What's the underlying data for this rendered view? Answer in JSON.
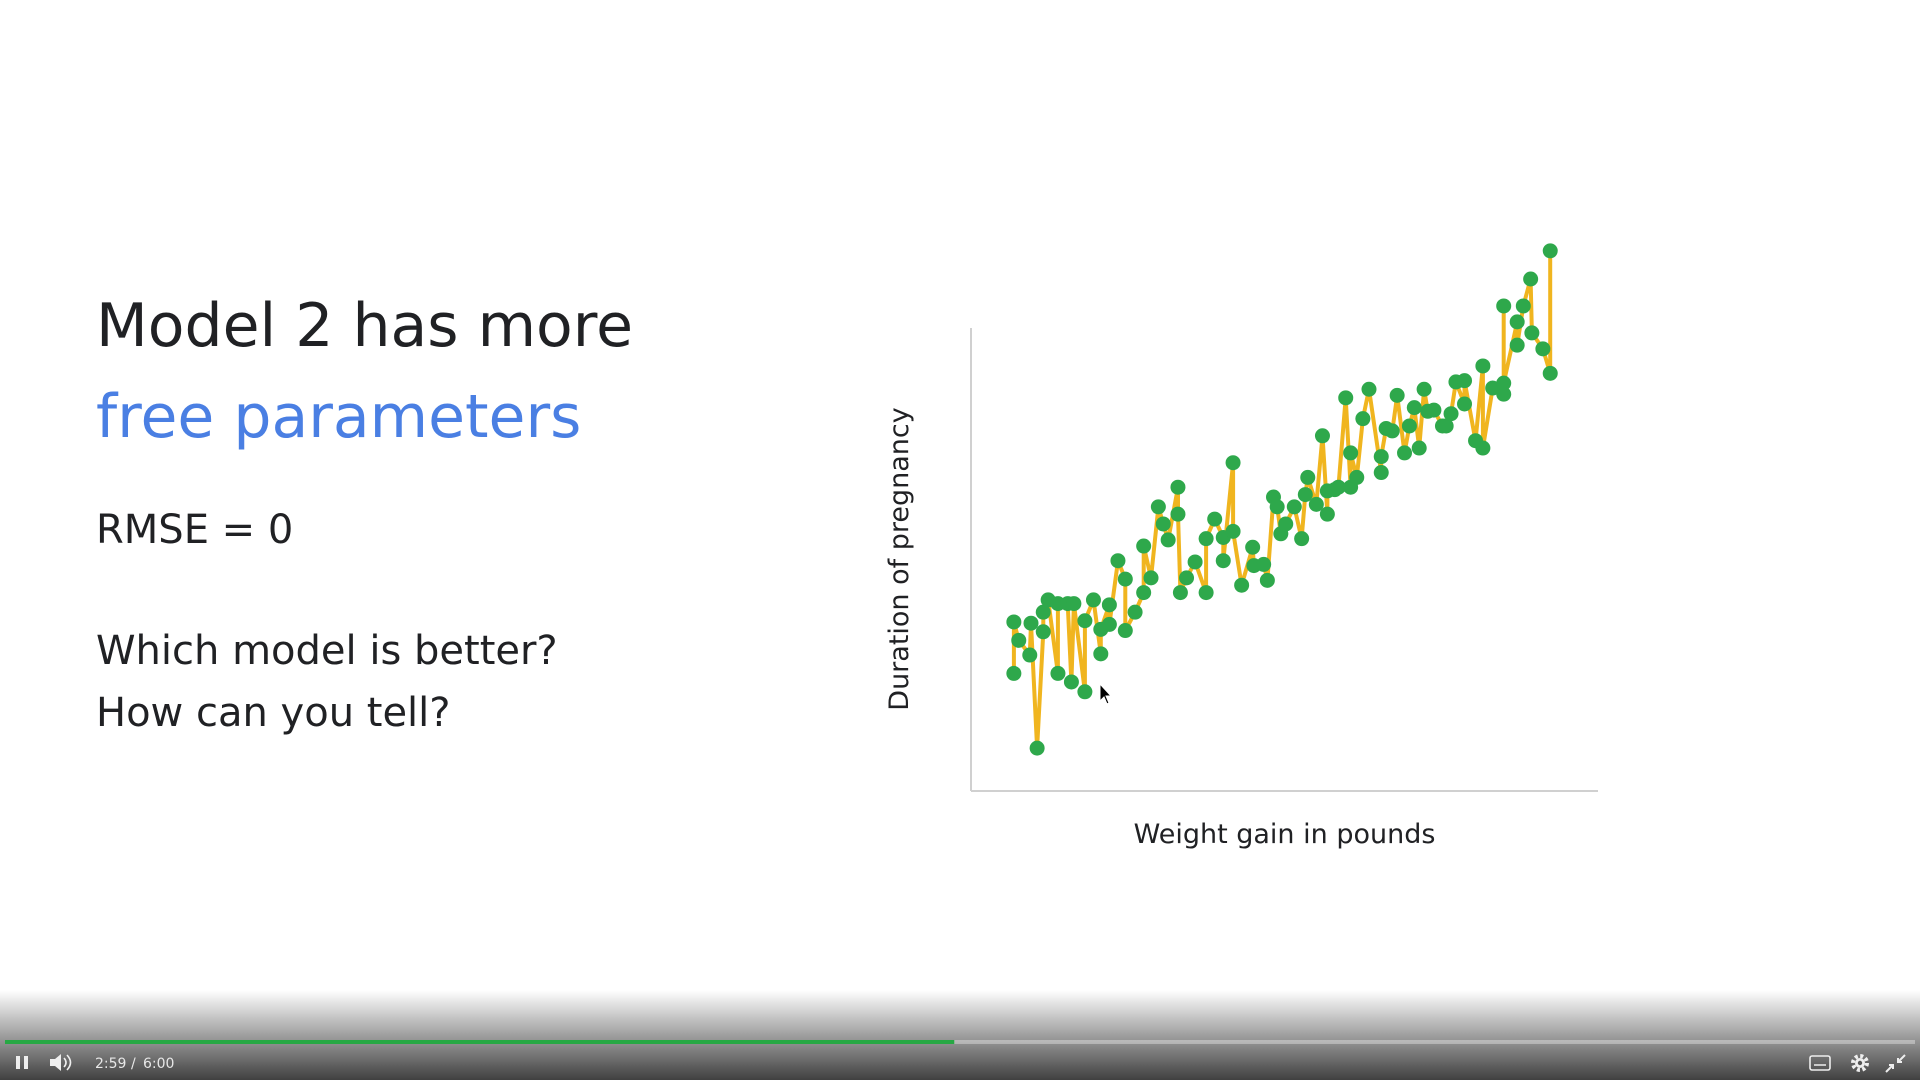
{
  "slide": {
    "title_line1": "Model 2 has more",
    "title_line2": "free parameters",
    "metric": "RMSE = 0",
    "question1": "Which model is better?",
    "question2": "How can you tell?"
  },
  "chart_data": {
    "type": "line",
    "markers": true,
    "xlabel": "Weight gain in pounds",
    "ylabel": "Duration of pregnancy",
    "xlim": [
      0,
      512
    ],
    "ylim": [
      0,
      378
    ],
    "line_color": "#f0b51f",
    "marker_color": "#2ea84b",
    "axis_color": "#d0d0d0",
    "x": [
      35,
      35,
      39,
      48,
      49,
      54,
      59,
      59,
      63,
      71,
      71,
      79,
      82,
      84,
      93,
      93,
      100,
      106,
      106,
      113,
      113,
      120,
      126,
      126,
      134,
      141,
      141,
      147,
      153,
      157,
      161,
      169,
      169,
      171,
      176,
      183,
      192,
      192,
      199,
      206,
      206,
      214,
      214,
      221,
      230,
      231,
      239,
      242,
      247,
      250,
      253,
      257,
      264,
      270,
      273,
      275,
      282,
      287,
      291,
      291,
      297,
      300,
      306,
      310,
      310,
      315,
      320,
      325,
      335,
      335,
      339,
      344,
      348,
      354,
      358,
      362,
      366,
      370,
      373,
      378,
      385,
      388,
      392,
      396,
      403,
      403,
      412,
      418,
      418,
      426,
      435,
      435,
      435,
      446,
      446,
      451,
      457,
      458,
      467,
      473,
      473
    ],
    "values": [
      96,
      138,
      123,
      111,
      137,
      35,
      130,
      146,
      156,
      96,
      153,
      153,
      89,
      153,
      81,
      139,
      156,
      112,
      132,
      152,
      136,
      188,
      173,
      131,
      146,
      162,
      200,
      174,
      232,
      218,
      205,
      248,
      226,
      162,
      174,
      187,
      162,
      206,
      222,
      207,
      188,
      268,
      212,
      168,
      199,
      184,
      185,
      172,
      240,
      232,
      210,
      218,
      232,
      206,
      242,
      256,
      234,
      290,
      226,
      245,
      246,
      248,
      321,
      248,
      276,
      256,
      304,
      328,
      260,
      273,
      296,
      294,
      323,
      276,
      298,
      313,
      280,
      328,
      310,
      311,
      298,
      298,
      308,
      334,
      316,
      335,
      286,
      347,
      280,
      329,
      324,
      396,
      333,
      383,
      364,
      396,
      418,
      374,
      361,
      341,
      441
    ]
  },
  "player": {
    "current_time": "2:59",
    "separator": "/",
    "duration": "6:00",
    "progress": 49.7,
    "progress_color": "#27a844"
  }
}
